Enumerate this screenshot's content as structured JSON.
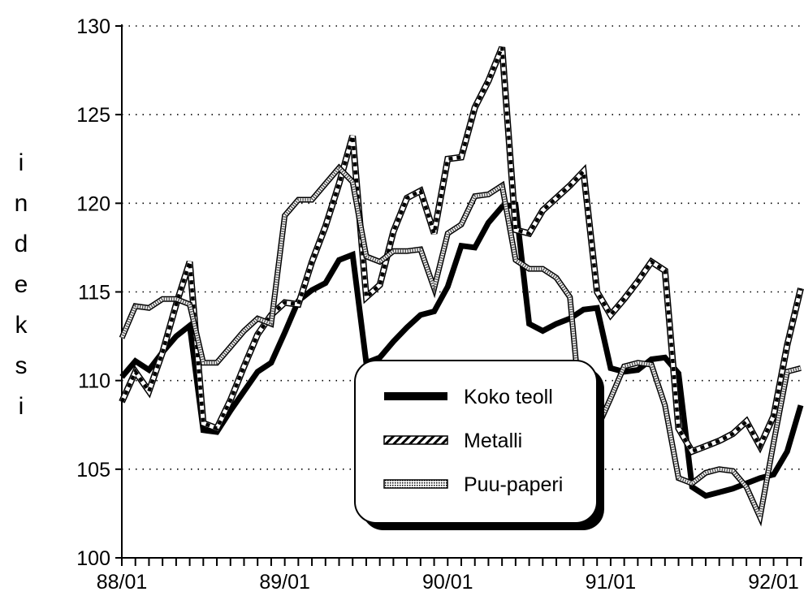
{
  "chart_data": {
    "type": "line",
    "ylabel": "indeksi",
    "xlabel": "",
    "title": "",
    "ylim": [
      100,
      130
    ],
    "yticks": [
      100,
      105,
      110,
      115,
      120,
      125,
      130
    ],
    "xtick_labels": [
      "88/01",
      "89/01",
      "90/01",
      "91/01",
      "92/01"
    ],
    "grid": "horizontal dotted",
    "legend_position": "center-right",
    "x_start": "88/01",
    "x_step": "1 month",
    "series": [
      {
        "name": "Koko teoll",
        "style": "thick-black",
        "values": [
          110.2,
          111.1,
          110.6,
          111.6,
          112.5,
          113.1,
          107.2,
          107.1,
          108.3,
          109.4,
          110.5,
          111.0,
          112.7,
          114.5,
          115.1,
          115.5,
          116.8,
          117.1,
          111.0,
          111.3,
          112.2,
          113.0,
          113.7,
          113.9,
          115.3,
          117.6,
          117.5,
          118.9,
          119.8,
          119.9,
          113.2,
          112.8,
          113.2,
          113.5,
          114.0,
          114.1,
          110.7,
          110.5,
          110.6,
          111.2,
          111.3,
          110.4,
          104.0,
          103.5,
          103.7,
          103.9,
          104.2,
          104.5,
          104.7,
          106.0,
          108.6
        ]
      },
      {
        "name": "Metalli",
        "style": "striped",
        "values": [
          108.8,
          110.5,
          109.4,
          111.6,
          114.3,
          116.7,
          107.6,
          107.3,
          108.9,
          110.8,
          112.6,
          113.7,
          114.4,
          114.3,
          116.7,
          118.7,
          121.1,
          123.8,
          114.7,
          115.4,
          118.4,
          120.3,
          120.7,
          118.3,
          122.5,
          122.6,
          125.4,
          126.9,
          128.8,
          118.5,
          118.3,
          119.6,
          120.3,
          121.0,
          121.8,
          115.0,
          113.7,
          114.6,
          115.6,
          116.7,
          116.2,
          107.3,
          106.0,
          106.3,
          106.6,
          107.0,
          107.7,
          106.3,
          108.0,
          112.0,
          115.2
        ]
      },
      {
        "name": "Puu-paperi",
        "style": "dotted",
        "values": [
          112.4,
          114.2,
          114.1,
          114.6,
          114.6,
          114.3,
          111.0,
          111.0,
          111.9,
          112.8,
          113.5,
          113.2,
          119.3,
          120.2,
          120.2,
          121.1,
          122.0,
          121.2,
          117.0,
          116.7,
          117.3,
          117.3,
          117.4,
          115.2,
          118.3,
          118.8,
          120.4,
          120.5,
          121.0,
          116.8,
          116.3,
          116.3,
          115.8,
          114.7,
          106.6,
          107.3,
          109.0,
          110.8,
          111.0,
          110.9,
          108.6,
          104.5,
          104.2,
          104.8,
          105.0,
          104.9,
          104.0,
          102.3,
          106.5,
          110.5,
          110.7
        ]
      }
    ]
  }
}
